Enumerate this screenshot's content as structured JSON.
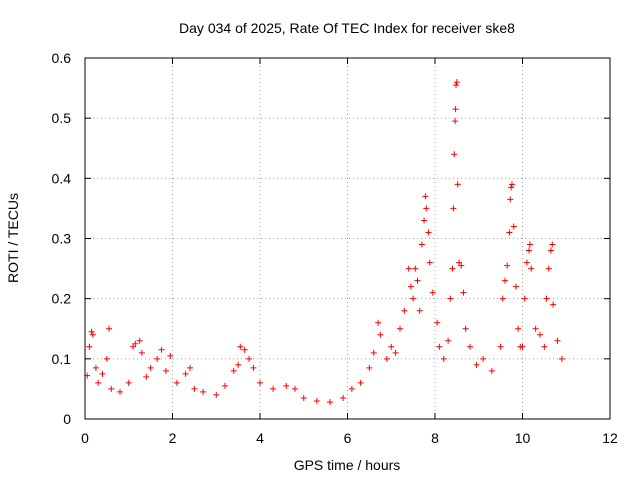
{
  "chart_data": {
    "type": "scatter",
    "title": "Day 034 of 2025, Rate Of TEC Index for receiver ske8",
    "xlabel": "GPS time / hours",
    "ylabel": "ROTI / TECUs",
    "xlim": [
      0,
      12
    ],
    "ylim": [
      0,
      0.6
    ],
    "xticks": [
      0,
      2,
      4,
      6,
      8,
      10,
      12
    ],
    "xtick_labels": [
      "0",
      "2",
      "4",
      "6",
      "8",
      "10",
      "12"
    ],
    "yticks": [
      0,
      0.1,
      0.2,
      0.3,
      0.4,
      0.5,
      0.6
    ],
    "ytick_labels": [
      "0",
      "0.1",
      "0.2",
      "0.3",
      "0.4",
      "0.5",
      "0.6"
    ],
    "grid": true,
    "marker": "+",
    "color": "#ff0000",
    "series": [
      {
        "name": "ROTI",
        "points": [
          [
            0.05,
            0.072
          ],
          [
            0.1,
            0.12
          ],
          [
            0.15,
            0.145
          ],
          [
            0.18,
            0.14
          ],
          [
            0.25,
            0.085
          ],
          [
            0.3,
            0.06
          ],
          [
            0.4,
            0.075
          ],
          [
            0.5,
            0.1
          ],
          [
            0.55,
            0.15
          ],
          [
            0.6,
            0.05
          ],
          [
            0.8,
            0.045
          ],
          [
            1.0,
            0.06
          ],
          [
            1.1,
            0.12
          ],
          [
            1.15,
            0.125
          ],
          [
            1.25,
            0.13
          ],
          [
            1.3,
            0.11
          ],
          [
            1.4,
            0.07
          ],
          [
            1.5,
            0.085
          ],
          [
            1.65,
            0.1
          ],
          [
            1.75,
            0.115
          ],
          [
            1.85,
            0.08
          ],
          [
            1.95,
            0.105
          ],
          [
            2.1,
            0.06
          ],
          [
            2.3,
            0.075
          ],
          [
            2.4,
            0.085
          ],
          [
            2.5,
            0.05
          ],
          [
            2.7,
            0.045
          ],
          [
            3.0,
            0.04
          ],
          [
            3.2,
            0.055
          ],
          [
            3.4,
            0.08
          ],
          [
            3.5,
            0.09
          ],
          [
            3.55,
            0.12
          ],
          [
            3.65,
            0.115
          ],
          [
            3.75,
            0.1
          ],
          [
            3.85,
            0.085
          ],
          [
            4.0,
            0.06
          ],
          [
            4.3,
            0.05
          ],
          [
            4.6,
            0.055
          ],
          [
            4.8,
            0.05
          ],
          [
            5.0,
            0.035
          ],
          [
            5.3,
            0.03
          ],
          [
            5.6,
            0.028
          ],
          [
            5.9,
            0.035
          ],
          [
            6.1,
            0.05
          ],
          [
            6.3,
            0.06
          ],
          [
            6.5,
            0.085
          ],
          [
            6.6,
            0.11
          ],
          [
            6.7,
            0.16
          ],
          [
            6.75,
            0.14
          ],
          [
            6.9,
            0.1
          ],
          [
            7.0,
            0.12
          ],
          [
            7.1,
            0.11
          ],
          [
            7.2,
            0.15
          ],
          [
            7.3,
            0.18
          ],
          [
            7.4,
            0.25
          ],
          [
            7.45,
            0.22
          ],
          [
            7.5,
            0.2
          ],
          [
            7.55,
            0.25
          ],
          [
            7.6,
            0.23
          ],
          [
            7.65,
            0.18
          ],
          [
            7.7,
            0.29
          ],
          [
            7.75,
            0.33
          ],
          [
            7.78,
            0.37
          ],
          [
            7.8,
            0.35
          ],
          [
            7.85,
            0.31
          ],
          [
            7.88,
            0.26
          ],
          [
            7.95,
            0.21
          ],
          [
            8.05,
            0.16
          ],
          [
            8.1,
            0.12
          ],
          [
            8.2,
            0.1
          ],
          [
            8.3,
            0.13
          ],
          [
            8.35,
            0.2
          ],
          [
            8.4,
            0.25
          ],
          [
            8.42,
            0.35
          ],
          [
            8.44,
            0.44
          ],
          [
            8.46,
            0.495
          ],
          [
            8.47,
            0.515
          ],
          [
            8.48,
            0.555
          ],
          [
            8.5,
            0.56
          ],
          [
            8.52,
            0.39
          ],
          [
            8.55,
            0.26
          ],
          [
            8.6,
            0.255
          ],
          [
            8.65,
            0.21
          ],
          [
            8.7,
            0.15
          ],
          [
            8.8,
            0.12
          ],
          [
            8.95,
            0.09
          ],
          [
            9.1,
            0.1
          ],
          [
            9.3,
            0.08
          ],
          [
            9.5,
            0.12
          ],
          [
            9.55,
            0.2
          ],
          [
            9.6,
            0.23
          ],
          [
            9.65,
            0.255
          ],
          [
            9.7,
            0.31
          ],
          [
            9.72,
            0.365
          ],
          [
            9.74,
            0.385
          ],
          [
            9.76,
            0.39
          ],
          [
            9.8,
            0.32
          ],
          [
            9.85,
            0.22
          ],
          [
            9.9,
            0.15
          ],
          [
            9.95,
            0.12
          ],
          [
            10.0,
            0.12
          ],
          [
            10.05,
            0.2
          ],
          [
            10.1,
            0.26
          ],
          [
            10.15,
            0.28
          ],
          [
            10.17,
            0.29
          ],
          [
            10.2,
            0.25
          ],
          [
            10.3,
            0.15
          ],
          [
            10.4,
            0.14
          ],
          [
            10.5,
            0.12
          ],
          [
            10.55,
            0.2
          ],
          [
            10.6,
            0.25
          ],
          [
            10.65,
            0.28
          ],
          [
            10.68,
            0.29
          ],
          [
            10.7,
            0.19
          ],
          [
            10.8,
            0.13
          ],
          [
            10.9,
            0.1
          ]
        ]
      }
    ]
  }
}
